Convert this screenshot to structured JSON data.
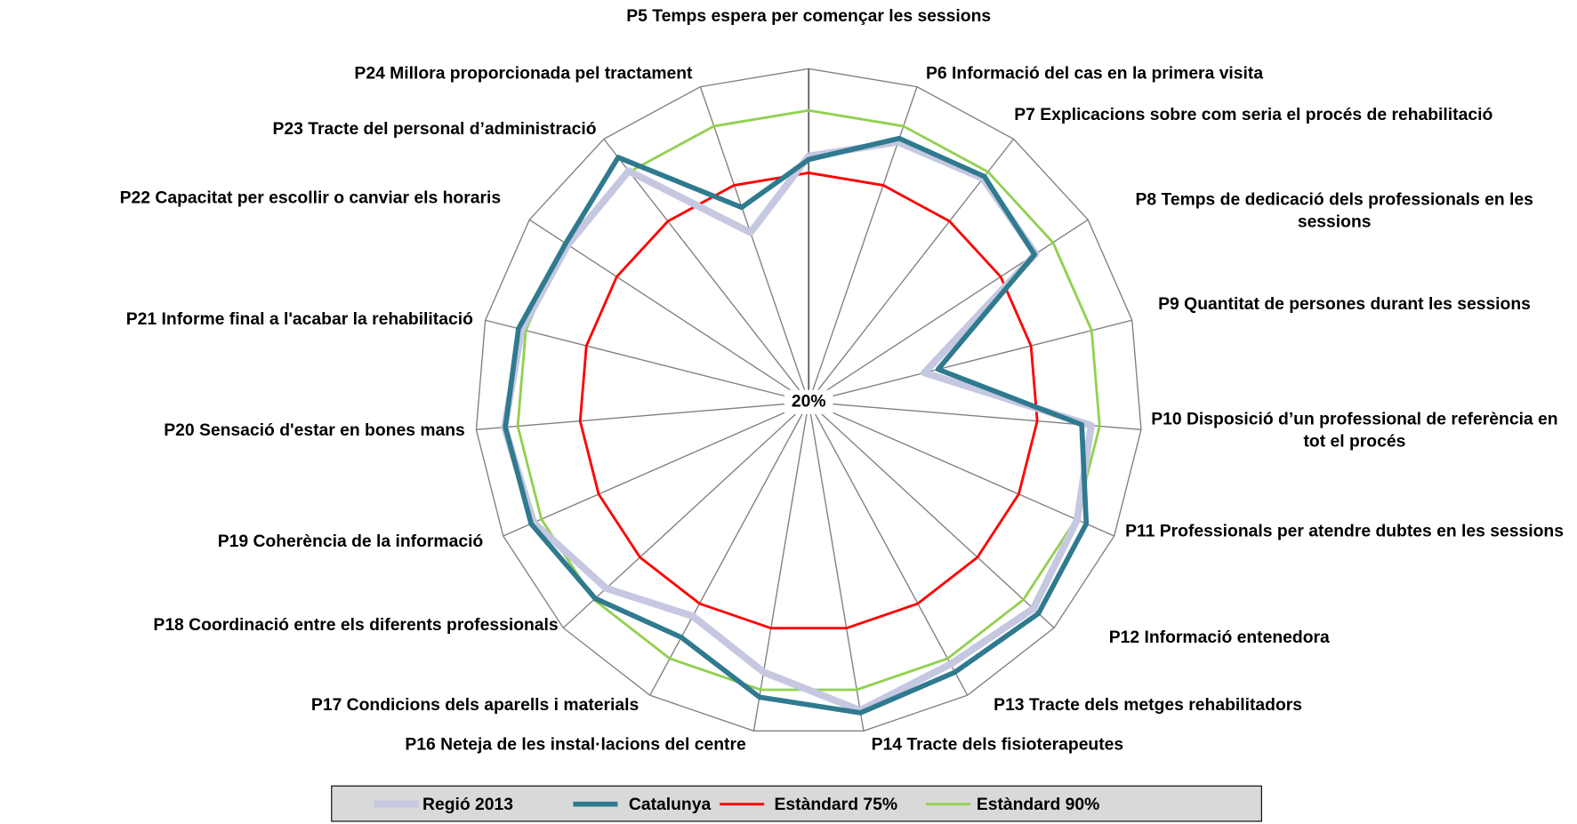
{
  "chart_data": {
    "type": "radar",
    "categories": [
      "P5 Temps espera per començar les sessions",
      "P6 Informació del cas en la primera visita",
      "P7 Explicacions sobre com seria el procés de rehabilitació",
      "P8 Temps de dedicació dels professionals en les sessions",
      "P9 Quantitat de persones durant les sessions",
      "P10 Disposició d’un professional de referència en tot el procés",
      "P11 Professionals per atendre dubtes en les sessions",
      "P12 Informació entenedora",
      "P13 Tracte dels metges rehabilitadors",
      "P14 Tracte dels fisioterapeutes",
      "P16 Neteja de les instal·lacions del centre",
      "P17 Condicions dels aparells i materials",
      "P18 Coordinació entre els diferents professionals",
      "P19 Coherència de la informació",
      "P20 Sensació d'estar en bones mans",
      "P21 Informe final a l'acabar la rehabilitació",
      "P22 Capacitat per escollir o canviar els horaris",
      "P23 Tracte del personal d’administració",
      "P24 Millora proporcionada pel tractament"
    ],
    "series": [
      {
        "name": "Estàndard 75%",
        "color": "#ff0000",
        "values": [
          75,
          75,
          75,
          75,
          75,
          75,
          75,
          75,
          75,
          75,
          75,
          75,
          75,
          75,
          75,
          75,
          75,
          75,
          75
        ]
      },
      {
        "name": "Estàndard 90%",
        "color": "#92d050",
        "values": [
          90,
          90,
          90,
          90,
          90,
          90,
          90,
          90,
          90,
          90,
          90,
          90,
          90,
          90,
          90,
          90,
          90,
          90,
          90
        ]
      },
      {
        "name": "Regió 2013",
        "color": "#c5c8e0",
        "values": [
          79,
          86,
          88,
          85,
          48.6,
          88,
          90.3,
          93.2,
          91.5,
          95,
          85.7,
          78.4,
          86,
          92,
          93.2,
          91,
          89,
          90.3,
          63
        ]
      },
      {
        "name": "Catalunya",
        "color": "#2f7a8f",
        "values": [
          78.2,
          86.9,
          88.6,
          84.7,
          52,
          85.7,
          92.7,
          94.9,
          93.7,
          95.6,
          91.8,
          84.2,
          89.6,
          92.7,
          93,
          91.8,
          89.6,
          94.4,
          69.4
        ]
      }
    ],
    "legend_order": [
      2,
      3,
      0,
      1
    ],
    "ylim": [
      20,
      100
    ],
    "yticks": [
      {
        "value": 20,
        "label": "20%"
      }
    ]
  }
}
